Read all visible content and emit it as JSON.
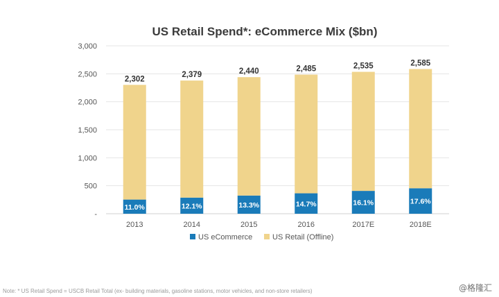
{
  "chart_data": {
    "type": "bar",
    "stacked": true,
    "title": "US Retail Spend*: eCommerce Mix ($bn)",
    "categories": [
      "2013",
      "2014",
      "2015",
      "2016",
      "2017E",
      "2018E"
    ],
    "totals": [
      2302,
      2379,
      2440,
      2485,
      2535,
      2585
    ],
    "total_labels": [
      "2,302",
      "2,379",
      "2,440",
      "2,485",
      "2,535",
      "2,585"
    ],
    "ecommerce_share_labels": [
      "11.0%",
      "12.1%",
      "13.3%",
      "14.7%",
      "16.1%",
      "17.6%"
    ],
    "series": [
      {
        "name": "US eCommerce",
        "color": "#1a7bb9",
        "values": [
          253,
          288,
          325,
          365,
          408,
          455
        ]
      },
      {
        "name": "US Retail (Offline)",
        "color": "#f0d48c",
        "values": [
          2049,
          2091,
          2115,
          2120,
          2127,
          2130
        ]
      }
    ],
    "ylim": [
      0,
      3000
    ],
    "yticks": [
      0,
      500,
      1000,
      1500,
      2000,
      2500,
      3000
    ],
    "ytick_labels": [
      "-",
      "500",
      "1,000",
      "1,500",
      "2,000",
      "2,500",
      "3,000"
    ],
    "grid": true,
    "legend_position": "bottom"
  },
  "footnote": "Note: * US Retail Spend  = USCB Retail Total (ex- building materials, gasoline stations, motor vehicles, and non-store retailers)",
  "watermark": "@格隆汇"
}
